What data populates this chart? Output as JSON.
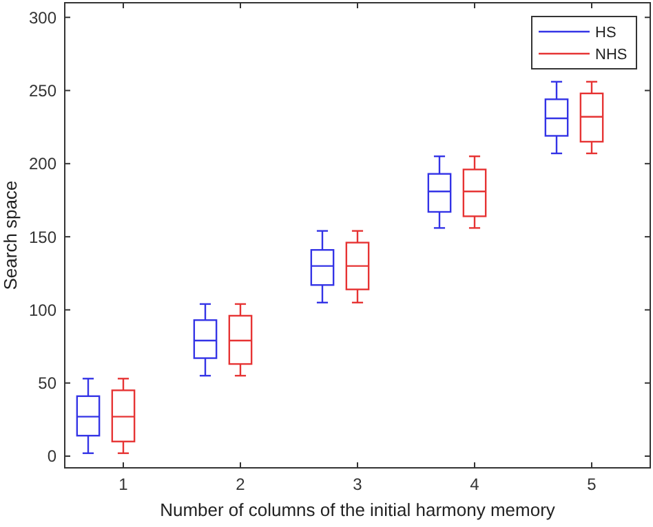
{
  "chart_data": {
    "type": "box",
    "xlabel": "Number of columns of the initial harmony memory",
    "ylabel": "Search space",
    "categories": [
      "1",
      "2",
      "3",
      "4",
      "5"
    ],
    "ylim": [
      -8,
      310
    ],
    "yticks": [
      0,
      50,
      100,
      150,
      200,
      250,
      300
    ],
    "grid": false,
    "legend": "top right",
    "series": [
      {
        "name": "HS",
        "color": "#3333e6",
        "boxes": [
          {
            "low": 2,
            "q1": 14,
            "median": 27,
            "q3": 41,
            "high": 53
          },
          {
            "low": 55,
            "q1": 67,
            "median": 79,
            "q3": 93,
            "high": 104
          },
          {
            "low": 105,
            "q1": 117,
            "median": 130,
            "q3": 141,
            "high": 154
          },
          {
            "low": 156,
            "q1": 167,
            "median": 181,
            "q3": 193,
            "high": 205
          },
          {
            "low": 207,
            "q1": 219,
            "median": 231,
            "q3": 244,
            "high": 256
          }
        ]
      },
      {
        "name": "NHS",
        "color": "#e63333",
        "boxes": [
          {
            "low": 2,
            "q1": 10,
            "median": 27,
            "q3": 45,
            "high": 53
          },
          {
            "low": 55,
            "q1": 63,
            "median": 79,
            "q3": 96,
            "high": 104
          },
          {
            "low": 105,
            "q1": 114,
            "median": 130,
            "q3": 146,
            "high": 154
          },
          {
            "low": 156,
            "q1": 164,
            "median": 181,
            "q3": 196,
            "high": 205
          },
          {
            "low": 207,
            "q1": 215,
            "median": 232,
            "q3": 248,
            "high": 256
          }
        ]
      }
    ]
  }
}
